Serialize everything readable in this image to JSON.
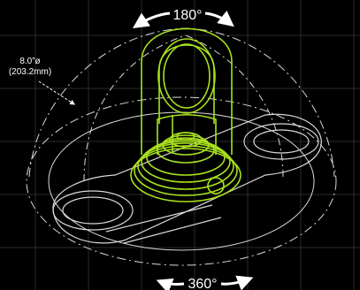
{
  "colors": {
    "background": "#000000",
    "grid": "#2a2a2a",
    "wireframe": "#d9d9d9",
    "product": "#a8e21d",
    "text": "#ffffff"
  },
  "labels": {
    "rotation_top": "180°",
    "rotation_bottom": "360°",
    "diameter_inches": "8.0”ø",
    "diameter_mm": "(203.2mm)"
  },
  "icons": {
    "top_arrows": "double-curved-arrow-icon",
    "bottom_arrows": "double-curved-arrow-icon",
    "leader": "leader-arrow-icon"
  }
}
